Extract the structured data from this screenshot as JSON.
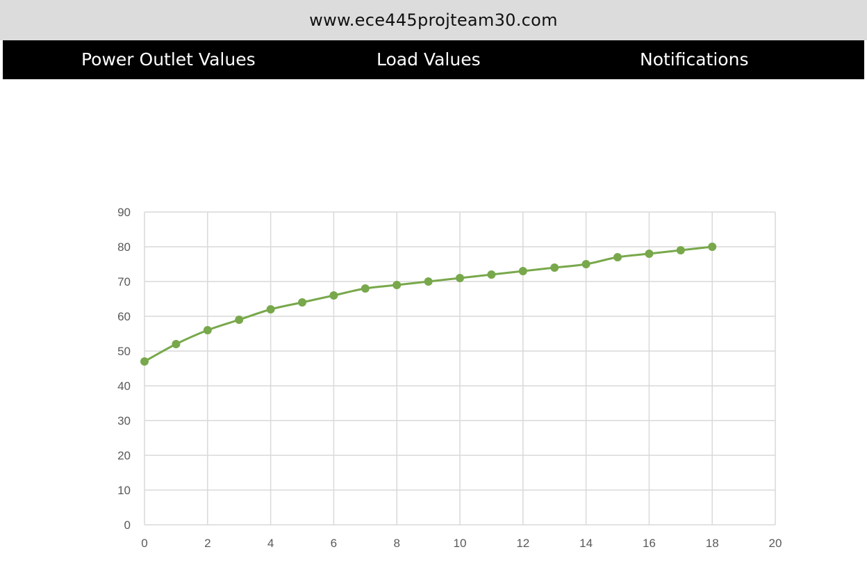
{
  "browser": {
    "url": "www.ece445projteam30.com"
  },
  "nav": {
    "items": [
      {
        "label": "Power Outlet Values"
      },
      {
        "label": "Load Values"
      },
      {
        "label": "Notifications"
      }
    ]
  },
  "colors": {
    "url_bar": "#dcdcdc",
    "nav_bar": "#000000",
    "series": "#78a84b",
    "grid": "#d9d9d9"
  },
  "chart_data": {
    "type": "line",
    "title": "",
    "xlabel": "",
    "ylabel": "",
    "xlim": [
      0,
      20
    ],
    "ylim": [
      0,
      90
    ],
    "x_ticks": [
      0,
      2,
      4,
      6,
      8,
      10,
      12,
      14,
      16,
      18,
      20
    ],
    "y_ticks": [
      0,
      10,
      20,
      30,
      40,
      50,
      60,
      70,
      80,
      90
    ],
    "grid": true,
    "legend": "none",
    "series": [
      {
        "x": [
          0,
          1,
          2,
          3,
          4,
          5,
          6,
          7,
          8,
          9,
          10,
          11,
          12,
          13,
          14,
          15,
          16,
          17,
          18
        ],
        "y": [
          47,
          52,
          56,
          59,
          62,
          64,
          66,
          68,
          69,
          70,
          71,
          72,
          73,
          74,
          75,
          77,
          78,
          79,
          80
        ]
      }
    ]
  }
}
